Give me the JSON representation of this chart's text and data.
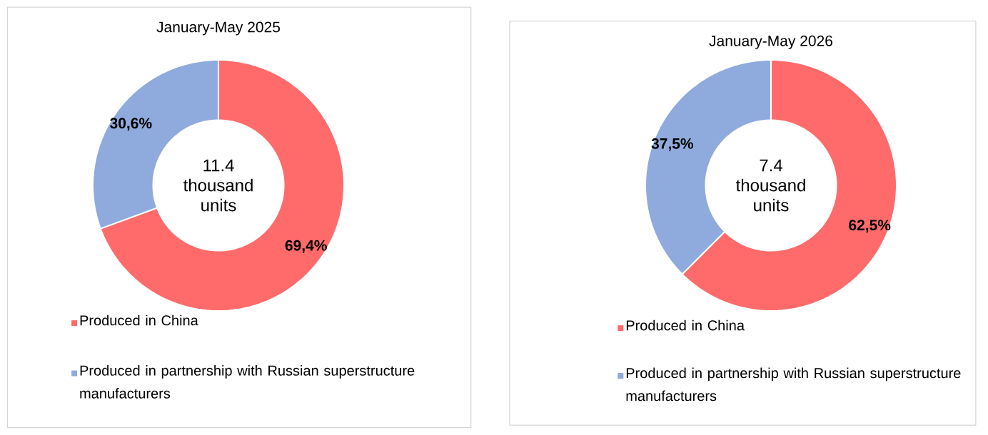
{
  "chart_data": [
    {
      "type": "donut",
      "title": "January-May 2025",
      "categories": [
        "Produced in China",
        "Produced in partnership with Russian superstructure manufacturers"
      ],
      "values": [
        69.4,
        30.6
      ],
      "colors": [
        "#ff6b6b",
        "#8faadc"
      ],
      "value_labels": [
        "69,4%",
        "30,6%"
      ],
      "annotations": [
        "11.4 thousand units"
      ],
      "legend": "bottom"
    },
    {
      "type": "donut",
      "title": "January-May 2026",
      "categories": [
        "Produced in China",
        "Produced in partnership with Russian superstructure manufacturers"
      ],
      "values": [
        62.5,
        37.5
      ],
      "colors": [
        "#ff6b6b",
        "#8faadc"
      ],
      "value_labels": [
        "62,5%",
        "37,5%"
      ],
      "annotations": [
        "7.4 thousand units"
      ],
      "legend": "bottom"
    }
  ]
}
